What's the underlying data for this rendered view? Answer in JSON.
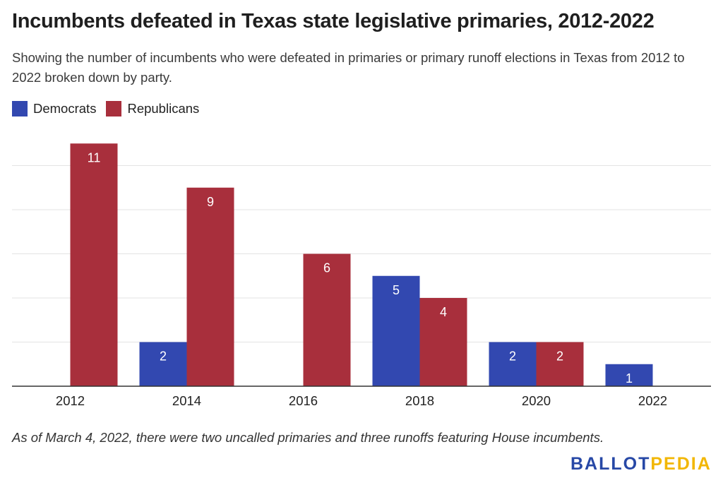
{
  "title": "Incumbents defeated in Texas state legislative primaries, 2012-2022",
  "subtitle": "Showing the number of incumbents who were defeated in primaries or primary runoff elections in Texas from 2012 to 2022 broken down by party.",
  "footnote": "As of March 4, 2022, there were two uncalled primaries and three runoffs featuring House incumbents.",
  "logo": {
    "part1": "BALLOT",
    "part2": "PEDIA",
    "color1": "#2748a6",
    "color2": "#f2b705"
  },
  "chart_data": {
    "type": "bar",
    "categories": [
      "2012",
      "2014",
      "2016",
      "2018",
      "2020",
      "2022"
    ],
    "series": [
      {
        "name": "Democrats",
        "color": "#3248b0",
        "values": [
          0,
          2,
          0,
          5,
          2,
          1
        ]
      },
      {
        "name": "Republicans",
        "color": "#a82f3c",
        "values": [
          11,
          9,
          6,
          4,
          2,
          0
        ]
      }
    ],
    "ylim": [
      0,
      12
    ],
    "grid": true,
    "legend": "top-left",
    "xlabel": "",
    "ylabel": ""
  }
}
